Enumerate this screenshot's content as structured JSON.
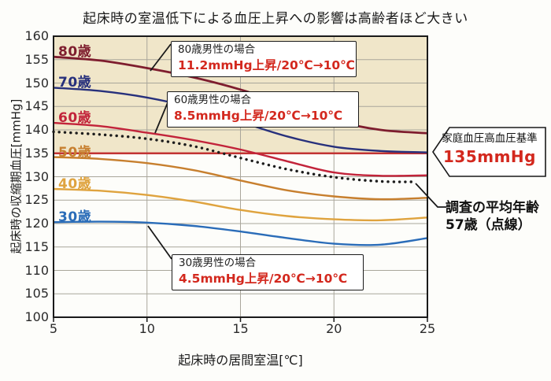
{
  "title": "起床時の室温低下による血圧上昇への影響は高齢者ほど大きい",
  "chart_data": {
    "type": "line",
    "x": [
      5,
      7.5,
      10,
      12.5,
      15,
      17.5,
      20,
      22.5,
      25
    ],
    "xlabel": "起床時の居間室温[℃]",
    "ylabel": "起床時の収縮期血圧[mmHg]",
    "xlim": [
      5,
      25
    ],
    "ylim": [
      100,
      160
    ],
    "x_ticks": [
      5,
      10,
      15,
      20,
      25
    ],
    "y_ticks": [
      100,
      105,
      110,
      115,
      120,
      125,
      130,
      135,
      140,
      145,
      150,
      155,
      160
    ],
    "grid": true,
    "legend_position": "in-plot-left",
    "shaded_band": {
      "from": 135,
      "to": 160,
      "color": "#f0e6c9",
      "meaning": "家庭血圧高血圧基準135mmHg以上の領域"
    },
    "reference_line": {
      "value": 135,
      "color": "#c23434",
      "label": "家庭血圧高血圧基準 135mmHg"
    },
    "series": [
      {
        "key": "age-80",
        "label": "80歳",
        "color": "#7e1d2e",
        "dotted": false,
        "values": [
          155.6,
          154.8,
          153.2,
          151.2,
          148.6,
          145.4,
          142.0,
          140.0,
          139.3
        ]
      },
      {
        "key": "age-70",
        "label": "70歳",
        "color": "#27307c",
        "dotted": false,
        "values": [
          149.0,
          148.3,
          146.9,
          144.7,
          141.7,
          138.6,
          136.4,
          135.5,
          135.2
        ]
      },
      {
        "key": "age-60",
        "label": "60歳",
        "color": "#c2233a",
        "dotted": false,
        "values": [
          141.5,
          140.8,
          139.4,
          137.8,
          135.8,
          133.3,
          130.9,
          130.2,
          130.3
        ]
      },
      {
        "key": "avg-57",
        "label": "",
        "name": "調査の平均年齢57歳（点線）",
        "color": "#1c1c1c",
        "dotted": true,
        "x_end": 24.3,
        "values": [
          139.6,
          139.0,
          138.1,
          136.5,
          134.0,
          131.6,
          129.9,
          129.0,
          128.9
        ]
      },
      {
        "key": "age-50",
        "label": "50歳",
        "color": "#c77f2e",
        "dotted": false,
        "values": [
          134.2,
          133.8,
          132.9,
          131.4,
          129.2,
          127.1,
          125.8,
          125.2,
          125.5
        ]
      },
      {
        "key": "age-40",
        "label": "40歳",
        "color": "#dfa33e",
        "dotted": false,
        "values": [
          127.4,
          127.0,
          126.1,
          124.7,
          122.9,
          121.6,
          120.9,
          120.7,
          121.3
        ]
      },
      {
        "key": "age-30",
        "label": "30歳",
        "color": "#2a6cb8",
        "dotted": false,
        "values": [
          120.3,
          120.4,
          120.2,
          119.5,
          118.3,
          116.9,
          115.7,
          115.5,
          116.9
        ]
      }
    ]
  },
  "annotation_boxes": [
    {
      "line1": "80歳男性の場合",
      "line2": "11.2mmHg上昇/20℃→10℃"
    },
    {
      "line1": "60歳男性の場合",
      "line2": "8.5mmHg上昇/20℃→10℃"
    },
    {
      "line1": "30歳男性の場合",
      "line2": "4.5mmHg上昇/20℃→10℃"
    }
  ],
  "callout": {
    "line1": "家庭血圧高血圧基準",
    "line2": "135mmHg"
  },
  "survey_note": {
    "line1": "調査の平均年齢",
    "line2": "57歳（点線）"
  }
}
